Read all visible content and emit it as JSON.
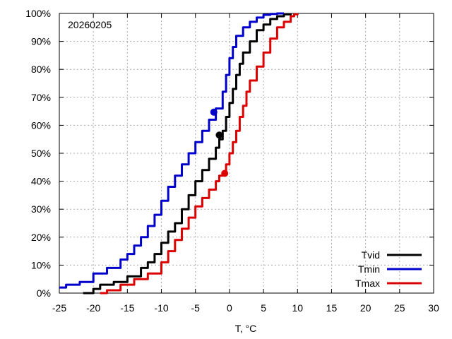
{
  "chart_data": {
    "type": "line",
    "annotation": "20260205",
    "xlabel": "T, °C",
    "ylabel": "",
    "xlim": [
      -25,
      30
    ],
    "ylim": [
      0,
      100
    ],
    "xticks": [
      -25,
      -20,
      -15,
      -10,
      -5,
      0,
      5,
      10,
      15,
      20,
      25,
      30
    ],
    "yticks": [
      "0%",
      "10%",
      "20%",
      "30%",
      "40%",
      "50%",
      "60%",
      "70%",
      "80%",
      "90%",
      "100%"
    ],
    "grid": true,
    "legend_position": "bottom-right",
    "series": [
      {
        "name": "Tvid",
        "color": "#000000",
        "x": [
          -21.5,
          -20,
          -19,
          -17,
          -15,
          -13,
          -12,
          -11,
          -10,
          -9,
          -8,
          -7,
          -6,
          -5,
          -4,
          -3,
          -2,
          -1.5,
          -1,
          -0.5,
          0,
          0.5,
          1,
          1.5,
          2,
          3,
          4,
          5,
          6,
          7,
          8,
          9
        ],
        "y": [
          0,
          1.5,
          3,
          4,
          6,
          9,
          11,
          14,
          18,
          22,
          25,
          30,
          35,
          40,
          44,
          48,
          52,
          55,
          58,
          63,
          68,
          73,
          78,
          82,
          86,
          90,
          94,
          96,
          98,
          99,
          99.7,
          100
        ],
        "marker": {
          "x": -1.5,
          "y": 56.5
        }
      },
      {
        "name": "Tmin",
        "color": "#0000cc",
        "x": [
          -25,
          -24,
          -22,
          -20,
          -18,
          -16,
          -15,
          -14,
          -13,
          -12,
          -11,
          -10,
          -9,
          -8,
          -7,
          -6,
          -5,
          -4,
          -3,
          -2,
          -1,
          -0.5,
          0,
          0.5,
          1,
          2,
          3,
          4,
          5,
          6,
          7,
          8
        ],
        "y": [
          2,
          3,
          4,
          7,
          9,
          12,
          14,
          17,
          20,
          24,
          28,
          33,
          38,
          42,
          46,
          50,
          54,
          58,
          62,
          66,
          72,
          78,
          84,
          88,
          92,
          95,
          97,
          98.5,
          99.5,
          99.8,
          100,
          100
        ],
        "marker": {
          "x": -2.3,
          "y": 64.7
        }
      },
      {
        "name": "Tmax",
        "color": "#dd0000",
        "x": [
          -19,
          -18,
          -16,
          -14,
          -12,
          -10,
          -9,
          -8,
          -7,
          -6,
          -5,
          -4,
          -3,
          -2,
          -1.5,
          -1,
          -0.5,
          0,
          0.5,
          1,
          1.5,
          2,
          2.5,
          3,
          4,
          5,
          6,
          7,
          8,
          9,
          9.5,
          10
        ],
        "y": [
          0,
          1,
          3,
          5,
          7,
          11,
          15,
          19,
          23,
          27,
          31,
          34,
          37,
          40,
          42,
          43,
          46,
          50,
          54,
          58,
          63,
          67,
          72,
          76,
          81,
          86,
          91,
          95,
          97,
          99,
          99.7,
          100
        ],
        "marker": {
          "x": -0.7,
          "y": 42.8
        }
      }
    ]
  }
}
